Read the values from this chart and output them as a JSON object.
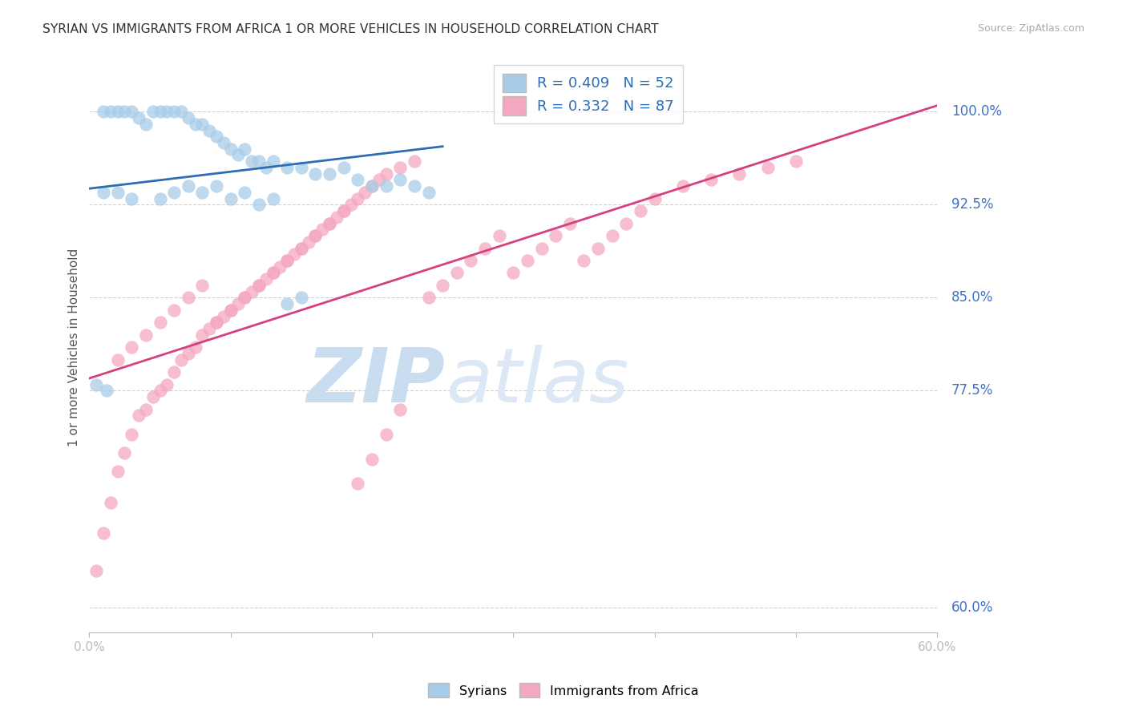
{
  "title": "SYRIAN VS IMMIGRANTS FROM AFRICA 1 OR MORE VEHICLES IN HOUSEHOLD CORRELATION CHART",
  "source": "Source: ZipAtlas.com",
  "ylabel": "1 or more Vehicles in Household",
  "ytick_labels": [
    "100.0%",
    "92.5%",
    "85.0%",
    "77.5%",
    "60.0%"
  ],
  "ytick_values": [
    100.0,
    92.5,
    85.0,
    77.5,
    60.0
  ],
  "xlim": [
    0.0,
    60.0
  ],
  "ylim": [
    58.0,
    104.0
  ],
  "legend_blue_label": "R = 0.409   N = 52",
  "legend_pink_label": "R = 0.332   N = 87",
  "blue_scatter_color": "#a8cce8",
  "pink_scatter_color": "#f4a8c0",
  "blue_line_color": "#2e6db4",
  "pink_line_color": "#d44080",
  "right_axis_color": "#4472c4",
  "grid_color": "#d0d0d0",
  "title_color": "#333333",
  "source_color": "#aaaaaa",
  "watermark_zip_color": "#c8ddf0",
  "watermark_atlas_color": "#dce8f5",
  "blue_trend_x0": 0.0,
  "blue_trend_y0": 93.8,
  "blue_trend_x1": 25.0,
  "blue_trend_y1": 97.2,
  "pink_trend_x0": 0.0,
  "pink_trend_y0": 78.5,
  "pink_trend_x1": 60.0,
  "pink_trend_y1": 100.5,
  "syrians_x": [
    1.0,
    1.5,
    2.0,
    2.5,
    3.0,
    3.5,
    4.0,
    4.5,
    5.0,
    5.5,
    6.0,
    6.5,
    7.0,
    7.5,
    8.0,
    8.5,
    9.0,
    9.5,
    10.0,
    10.5,
    11.0,
    11.5,
    12.0,
    12.5,
    13.0,
    14.0,
    15.0,
    16.0,
    17.0,
    18.0,
    19.0,
    20.0,
    21.0,
    22.0,
    23.0,
    24.0,
    1.0,
    2.0,
    3.0,
    5.0,
    6.0,
    7.0,
    8.0,
    9.0,
    10.0,
    11.0,
    12.0,
    13.0,
    0.5,
    1.2,
    14.0,
    15.0
  ],
  "syrians_y": [
    100.0,
    100.0,
    100.0,
    100.0,
    100.0,
    99.5,
    99.0,
    100.0,
    100.0,
    100.0,
    100.0,
    100.0,
    99.5,
    99.0,
    99.0,
    98.5,
    98.0,
    97.5,
    97.0,
    96.5,
    97.0,
    96.0,
    96.0,
    95.5,
    96.0,
    95.5,
    95.5,
    95.0,
    95.0,
    95.5,
    94.5,
    94.0,
    94.0,
    94.5,
    94.0,
    93.5,
    93.5,
    93.5,
    93.0,
    93.0,
    93.5,
    94.0,
    93.5,
    94.0,
    93.0,
    93.5,
    92.5,
    93.0,
    78.0,
    77.5,
    84.5,
    85.0
  ],
  "africa_x": [
    0.5,
    1.0,
    1.5,
    2.0,
    2.5,
    3.0,
    3.5,
    4.0,
    4.5,
    5.0,
    5.5,
    6.0,
    6.5,
    7.0,
    7.5,
    8.0,
    8.5,
    9.0,
    9.5,
    10.0,
    10.5,
    11.0,
    11.5,
    12.0,
    12.5,
    13.0,
    13.5,
    14.0,
    14.5,
    15.0,
    15.5,
    16.0,
    16.5,
    17.0,
    17.5,
    18.0,
    18.5,
    19.0,
    19.5,
    20.0,
    20.5,
    21.0,
    22.0,
    23.0,
    24.0,
    25.0,
    26.0,
    27.0,
    28.0,
    29.0,
    30.0,
    31.0,
    32.0,
    33.0,
    34.0,
    35.0,
    36.0,
    37.0,
    38.0,
    39.0,
    40.0,
    42.0,
    44.0,
    46.0,
    48.0,
    50.0,
    2.0,
    3.0,
    4.0,
    5.0,
    6.0,
    7.0,
    8.0,
    9.0,
    10.0,
    11.0,
    12.0,
    13.0,
    14.0,
    15.0,
    16.0,
    17.0,
    18.0,
    19.0,
    20.0,
    21.0,
    22.0
  ],
  "africa_y": [
    63.0,
    66.0,
    68.5,
    71.0,
    72.5,
    74.0,
    75.5,
    76.0,
    77.0,
    77.5,
    78.0,
    79.0,
    80.0,
    80.5,
    81.0,
    82.0,
    82.5,
    83.0,
    83.5,
    84.0,
    84.5,
    85.0,
    85.5,
    86.0,
    86.5,
    87.0,
    87.5,
    88.0,
    88.5,
    89.0,
    89.5,
    90.0,
    90.5,
    91.0,
    91.5,
    92.0,
    92.5,
    93.0,
    93.5,
    94.0,
    94.5,
    95.0,
    95.5,
    96.0,
    85.0,
    86.0,
    87.0,
    88.0,
    89.0,
    90.0,
    87.0,
    88.0,
    89.0,
    90.0,
    91.0,
    88.0,
    89.0,
    90.0,
    91.0,
    92.0,
    93.0,
    94.0,
    94.5,
    95.0,
    95.5,
    96.0,
    80.0,
    81.0,
    82.0,
    83.0,
    84.0,
    85.0,
    86.0,
    83.0,
    84.0,
    85.0,
    86.0,
    87.0,
    88.0,
    89.0,
    90.0,
    91.0,
    92.0,
    70.0,
    72.0,
    74.0,
    76.0
  ]
}
